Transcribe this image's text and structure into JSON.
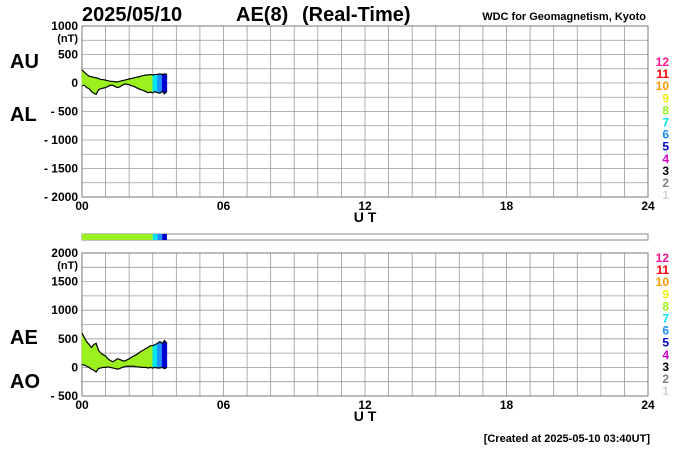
{
  "header": {
    "date": "2025/05/10",
    "index": "AE(8)",
    "mode": "(Real-Time)",
    "source": "WDC for Geomagnetism, Kyoto"
  },
  "chart_data": [
    {
      "type": "area",
      "xlabel": "U T",
      "ylabel": "(nT)",
      "x": [
        0,
        0.1,
        0.2,
        0.3,
        0.4,
        0.5,
        0.6,
        0.7,
        0.8,
        0.9,
        1,
        1.1,
        1.2,
        1.3,
        1.4,
        1.5,
        1.6,
        1.7,
        1.8,
        1.9,
        2,
        2.1,
        2.2,
        2.3,
        2.4,
        2.5,
        2.6,
        2.7,
        2.8,
        2.9,
        3,
        3.1,
        3.2,
        3.3,
        3.4,
        3.5,
        3.6
      ],
      "series": [
        {
          "name": "AU",
          "color": "#000000",
          "values": [
            230,
            190,
            150,
            120,
            110,
            100,
            90,
            80,
            60,
            60,
            50,
            40,
            30,
            30,
            20,
            20,
            30,
            40,
            50,
            60,
            70,
            80,
            90,
            100,
            110,
            120,
            130,
            140,
            140,
            150,
            140,
            150,
            150,
            160,
            150,
            160,
            150
          ]
        },
        {
          "name": "AL",
          "color": "#000000",
          "values": [
            -50,
            -40,
            -80,
            -100,
            -150,
            -180,
            -200,
            -120,
            -100,
            -90,
            -80,
            -60,
            -40,
            -40,
            -60,
            -80,
            -70,
            -40,
            -20,
            -20,
            -30,
            -50,
            -60,
            -80,
            -100,
            -120,
            -130,
            -150,
            -170,
            -160,
            -170,
            -150,
            -170,
            -180,
            -150,
            -190,
            -150
          ]
        }
      ],
      "xlim": [
        0,
        24
      ],
      "xticks": [
        {
          "value": 0,
          "label": "00"
        },
        {
          "value": 6,
          "label": "06"
        },
        12,
        18,
        24
      ],
      "xgrid": [
        0,
        1,
        2,
        3,
        4,
        5,
        6,
        7,
        8,
        9,
        10,
        11,
        12,
        13,
        14,
        15,
        16,
        17,
        18,
        19,
        20,
        21,
        22,
        23,
        24
      ],
      "ylim": [
        -2000,
        1000
      ],
      "yticks": [
        1000,
        500,
        0,
        {
          "value": -500,
          "label": "- 500"
        },
        {
          "value": -1000,
          "label": "- 1000"
        },
        {
          "value": -1500,
          "label": "- 1500"
        },
        {
          "value": -2000,
          "label": "- 2000"
        }
      ],
      "ygrid": [
        1000,
        750,
        500,
        250,
        0,
        -250,
        -500,
        -750,
        -1000,
        -1250,
        -1500,
        -1750,
        -2000
      ]
    },
    {
      "type": "area",
      "xlabel": "U T",
      "ylabel": "(nT)",
      "x": [
        0,
        0.1,
        0.2,
        0.3,
        0.4,
        0.5,
        0.6,
        0.7,
        0.8,
        0.9,
        1,
        1.1,
        1.2,
        1.3,
        1.4,
        1.5,
        1.6,
        1.7,
        1.8,
        1.9,
        2,
        2.1,
        2.2,
        2.3,
        2.4,
        2.5,
        2.6,
        2.7,
        2.8,
        2.9,
        3,
        3.1,
        3.2,
        3.3,
        3.4,
        3.5,
        3.6
      ],
      "series": [
        {
          "name": "AE",
          "color": "#000000",
          "values": [
            600,
            520,
            450,
            400,
            350,
            400,
            420,
            300,
            250,
            220,
            200,
            150,
            120,
            100,
            120,
            150,
            140,
            120,
            110,
            130,
            150,
            180,
            200,
            220,
            250,
            280,
            300,
            330,
            350,
            380,
            380,
            400,
            420,
            450,
            420,
            470,
            420
          ]
        },
        {
          "name": "AO",
          "color": "#000000",
          "values": [
            50,
            40,
            20,
            0,
            -30,
            -50,
            -80,
            -20,
            -10,
            0,
            0,
            10,
            0,
            -10,
            -20,
            -30,
            -20,
            0,
            10,
            20,
            20,
            20,
            20,
            10,
            10,
            0,
            0,
            0,
            -10,
            0,
            -10,
            0,
            -10,
            -10,
            0,
            -20,
            0
          ]
        }
      ],
      "xlim": [
        0,
        24
      ],
      "xticks": [
        {
          "value": 0,
          "label": "00"
        },
        {
          "value": 6,
          "label": "06"
        },
        12,
        18,
        24
      ],
      "xgrid": [
        0,
        1,
        2,
        3,
        4,
        5,
        6,
        7,
        8,
        9,
        10,
        11,
        12,
        13,
        14,
        15,
        16,
        17,
        18,
        19,
        20,
        21,
        22,
        23,
        24
      ],
      "ylim": [
        -500,
        2000
      ],
      "yticks": [
        2000,
        1500,
        1000,
        500,
        0,
        {
          "value": -500,
          "label": "- 500"
        }
      ],
      "ygrid": [
        2000,
        1750,
        1500,
        1250,
        1000,
        750,
        500,
        250,
        0,
        -250,
        -500
      ]
    }
  ],
  "stations": {
    "levels": [
      12,
      11,
      10,
      9,
      8,
      7,
      6,
      5,
      4,
      3,
      2,
      1
    ],
    "colors": [
      "#ff1493",
      "#ff0000",
      "#ff9900",
      "#f0f000",
      "#9cf01e",
      "#00e5ee",
      "#1e90ff",
      "#0000cd",
      "#cc00cc",
      "#000000",
      "#808080",
      "#d3d3d3"
    ],
    "segments": [
      {
        "start": 0,
        "end": 3.0,
        "count": 8
      },
      {
        "start": 3.0,
        "end": 3.2,
        "count": 7
      },
      {
        "start": 3.2,
        "end": 3.4,
        "count": 6
      },
      {
        "start": 3.4,
        "end": 3.6,
        "count": 5
      }
    ]
  },
  "footer": "[Created at 2025-05-10 03:40UT]"
}
